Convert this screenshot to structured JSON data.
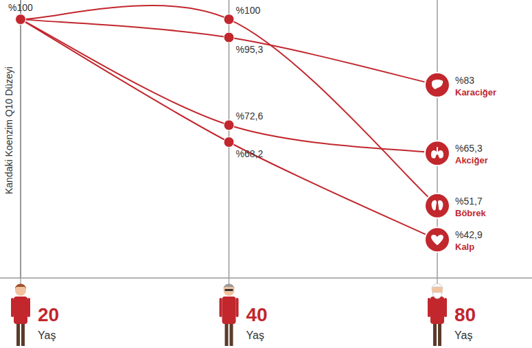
{
  "chart_data": {
    "type": "line",
    "ylabel": "Kandaki Koenzim Q10 Düzeyi",
    "xlabel": "Yaş",
    "categories": [
      "20",
      "40",
      "80"
    ],
    "series": [
      {
        "name": "Karaciğer",
        "color": "#c1272d",
        "values": [
          100,
          95.3,
          83
        ],
        "value_labels": [
          "%100",
          "%95,3",
          "%83"
        ]
      },
      {
        "name": "Akciğer",
        "color": "#c1272d",
        "values": [
          100,
          72.6,
          65.3
        ],
        "value_labels": [
          null,
          "%72,6",
          "%65,3"
        ]
      },
      {
        "name": "Böbrek",
        "color": "#c1272d",
        "values": [
          100,
          100,
          51.7
        ],
        "value_labels": [
          null,
          "%100",
          "%51,7"
        ]
      },
      {
        "name": "Kalp",
        "color": "#c1272d",
        "values": [
          100,
          68.2,
          42.9
        ],
        "value_labels": [
          null,
          "%68,2",
          "%42,9"
        ]
      }
    ],
    "ylim": [
      33,
      105
    ],
    "grid": true,
    "data_labels": true,
    "tick_labels": "x",
    "marker": "circle"
  }
}
